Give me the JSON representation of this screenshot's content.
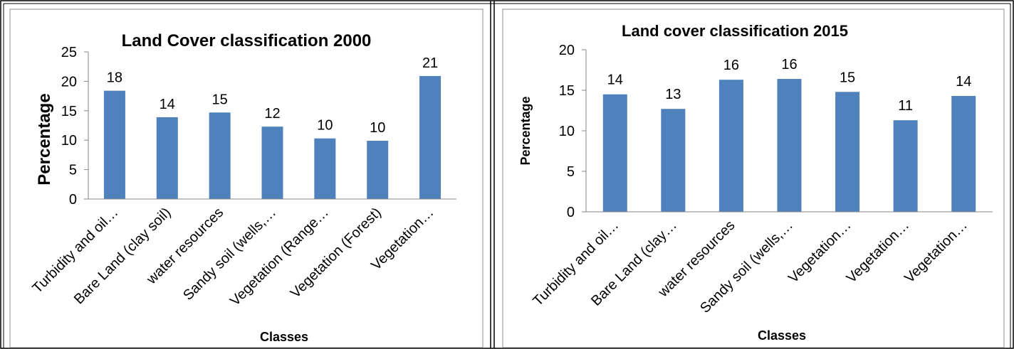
{
  "chart_data": [
    {
      "type": "bar",
      "title": "Land Cover classification 2000",
      "xlabel": "Classes",
      "ylabel": "Percentage",
      "ylim": [
        0,
        25
      ],
      "yticks": [
        "0",
        "5",
        "10",
        "15",
        "20",
        "25"
      ],
      "categories": [
        "Turbidity and oil…",
        "Bare Land (clay soil)",
        "water resources",
        "Sandy soil (wells,…",
        "Vegetation (Range…",
        "Vegetation (Forest)",
        "Vegetation…"
      ],
      "values": [
        18.4,
        13.9,
        14.7,
        12.3,
        10.3,
        9.9,
        20.9
      ],
      "data_labels": [
        "18",
        "14",
        "15",
        "12",
        "10",
        "10",
        "21"
      ],
      "bar_color": "#4F81BD",
      "grid": false,
      "legend": "none"
    },
    {
      "type": "bar",
      "title": "Land cover classification 2015",
      "xlabel": "Classes",
      "ylabel": "Percentage",
      "ylim": [
        0,
        20
      ],
      "yticks": [
        "0",
        "5",
        "10",
        "15",
        "20"
      ],
      "categories": [
        "Turbidity and oil…",
        "Bare Land (clay…",
        "water resources",
        "Sandy soil (wells,…",
        "Vegetation…",
        "Vegetation…",
        "Vegetation…"
      ],
      "values": [
        14.5,
        12.7,
        16.3,
        16.4,
        14.8,
        11.3,
        14.3
      ],
      "data_labels": [
        "14",
        "13",
        "16",
        "16",
        "15",
        "11",
        "14"
      ],
      "bar_color": "#4F81BD",
      "grid": false,
      "legend": "none"
    }
  ]
}
